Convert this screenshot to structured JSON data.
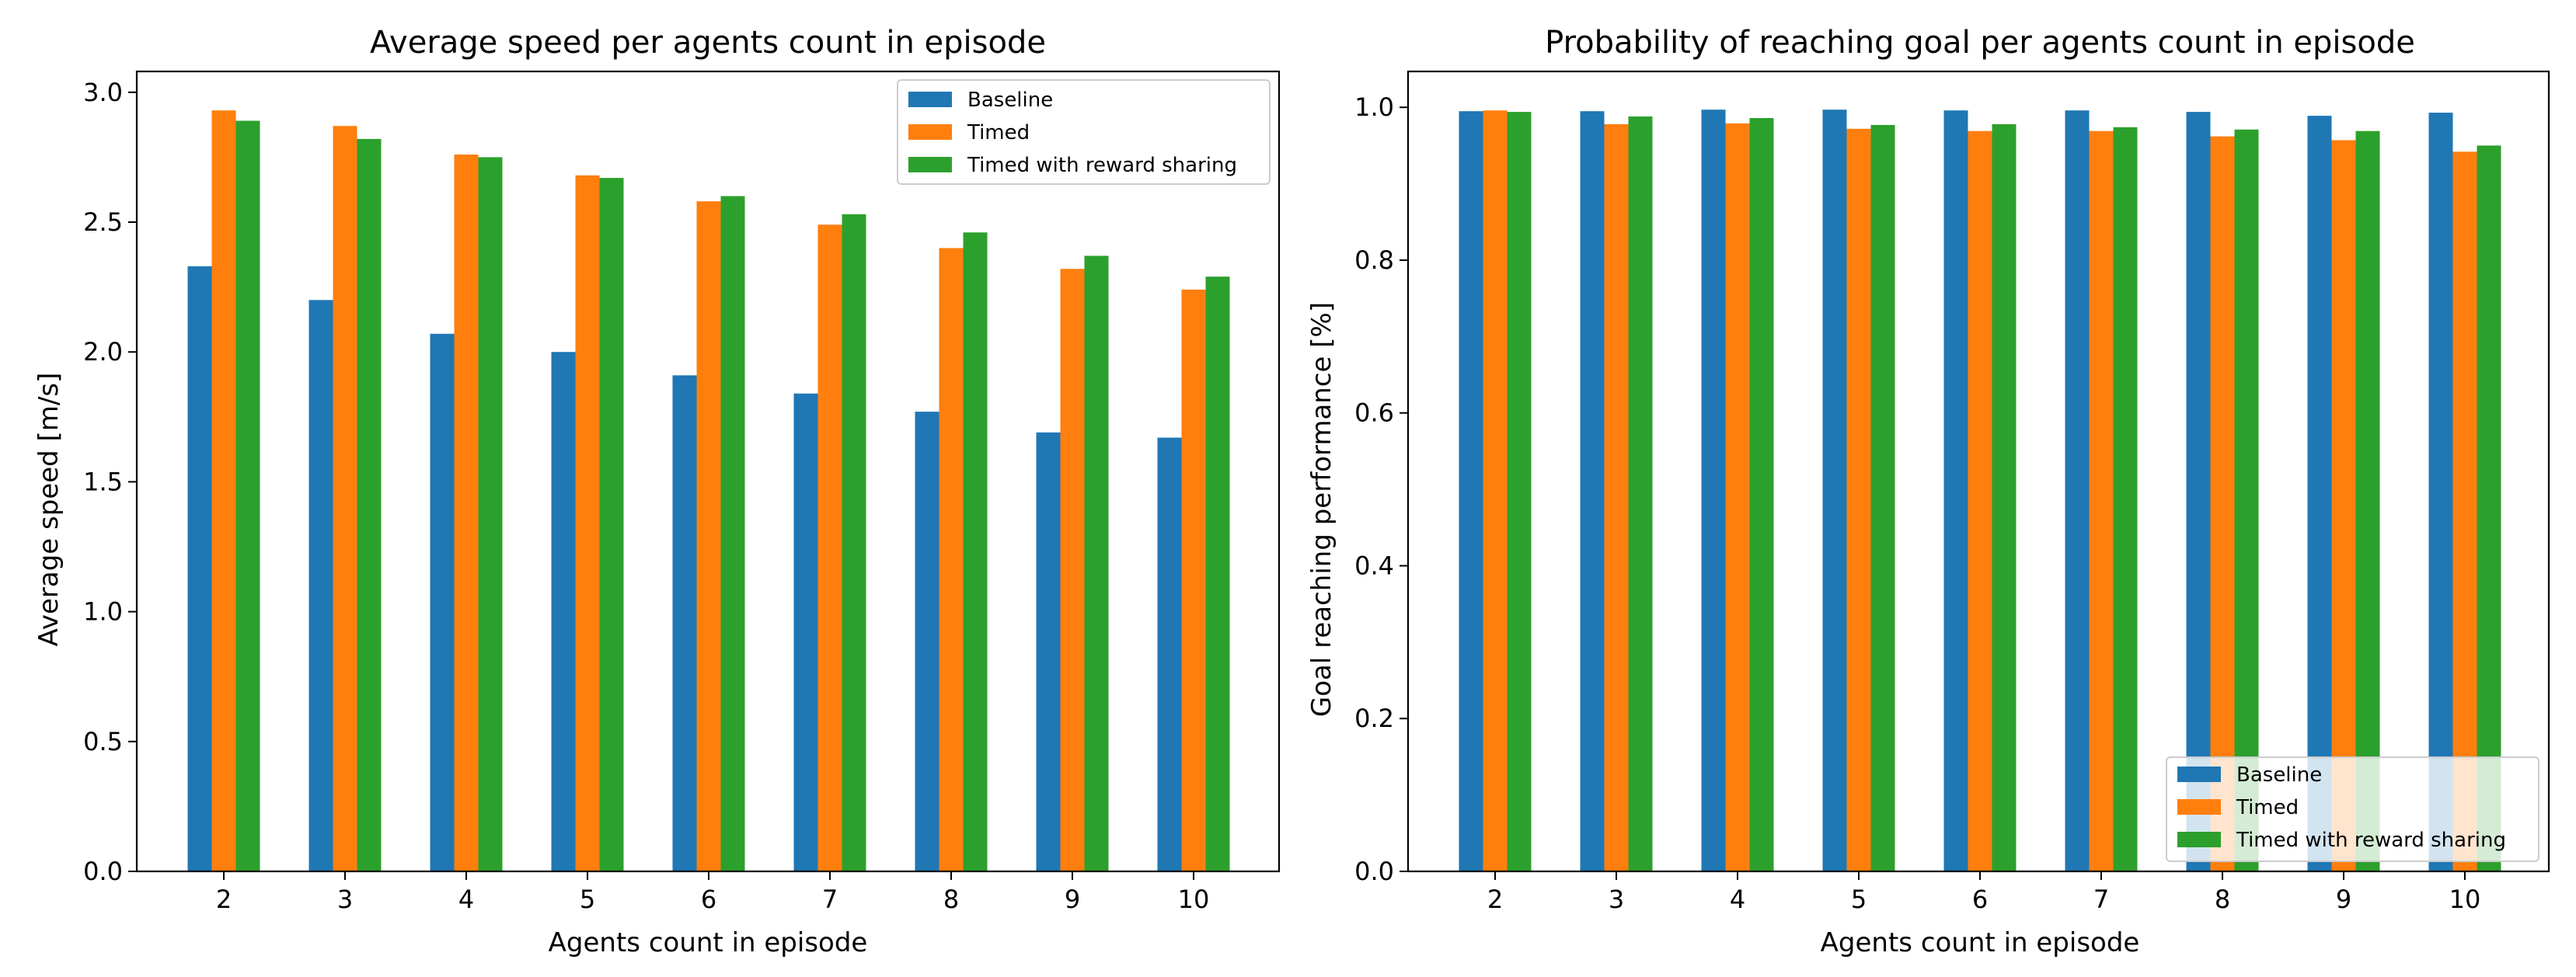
{
  "charts": {
    "speed": {
      "title": "Average speed per agents count in episode",
      "xlabel": "Agents count in episode",
      "ylabel": "Average speed [m/s]",
      "ytick_labels": [
        "0.0",
        "0.5",
        "1.0",
        "1.5",
        "2.0",
        "2.5",
        "3.0"
      ]
    },
    "goal": {
      "title": "Probability of reaching goal per agents count in episode",
      "xlabel": "Agents count in episode",
      "ylabel": "Goal reaching performance [%]",
      "ytick_labels": [
        "0.0",
        "0.2",
        "0.4",
        "0.6",
        "0.8",
        "1.0"
      ]
    }
  },
  "legend": {
    "baseline": "Baseline",
    "timed": "Timed",
    "timed_reward": "Timed with reward sharing"
  },
  "chart_data": [
    {
      "type": "bar",
      "title": "Average speed per agents count in episode",
      "xlabel": "Agents count in episode",
      "ylabel": "Average speed [m/s]",
      "categories": [
        "2",
        "3",
        "4",
        "5",
        "6",
        "7",
        "8",
        "9",
        "10"
      ],
      "ylim": [
        0,
        3.08
      ],
      "yticks": [
        0.0,
        0.5,
        1.0,
        1.5,
        2.0,
        2.5,
        3.0
      ],
      "legend_position": "top-right",
      "series": [
        {
          "name": "Baseline",
          "color": "#1f77b4",
          "values": [
            2.33,
            2.2,
            2.07,
            2.0,
            1.91,
            1.84,
            1.77,
            1.69,
            1.67
          ]
        },
        {
          "name": "Timed",
          "color": "#ff7f0e",
          "values": [
            2.93,
            2.87,
            2.76,
            2.68,
            2.58,
            2.49,
            2.4,
            2.32,
            2.24
          ]
        },
        {
          "name": "Timed with reward sharing",
          "color": "#2ca02c",
          "values": [
            2.89,
            2.82,
            2.75,
            2.67,
            2.6,
            2.53,
            2.46,
            2.37,
            2.29
          ]
        }
      ]
    },
    {
      "type": "bar",
      "title": "Probability of reaching goal per agents count in episode",
      "xlabel": "Agents count in episode",
      "ylabel": "Goal reaching performance [%]",
      "categories": [
        "2",
        "3",
        "4",
        "5",
        "6",
        "7",
        "8",
        "9",
        "10"
      ],
      "ylim": [
        0,
        1.047
      ],
      "yticks": [
        0.0,
        0.2,
        0.4,
        0.6,
        0.8,
        1.0
      ],
      "legend_position": "bottom-right",
      "series": [
        {
          "name": "Baseline",
          "color": "#1f77b4",
          "values": [
            0.995,
            0.995,
            0.997,
            0.997,
            0.996,
            0.996,
            0.994,
            0.989,
            0.993
          ]
        },
        {
          "name": "Timed",
          "color": "#ff7f0e",
          "values": [
            0.996,
            0.978,
            0.979,
            0.972,
            0.969,
            0.969,
            0.962,
            0.957,
            0.942
          ]
        },
        {
          "name": "Timed with reward sharing",
          "color": "#2ca02c",
          "values": [
            0.994,
            0.988,
            0.986,
            0.977,
            0.978,
            0.974,
            0.971,
            0.969,
            0.95
          ]
        }
      ]
    }
  ]
}
